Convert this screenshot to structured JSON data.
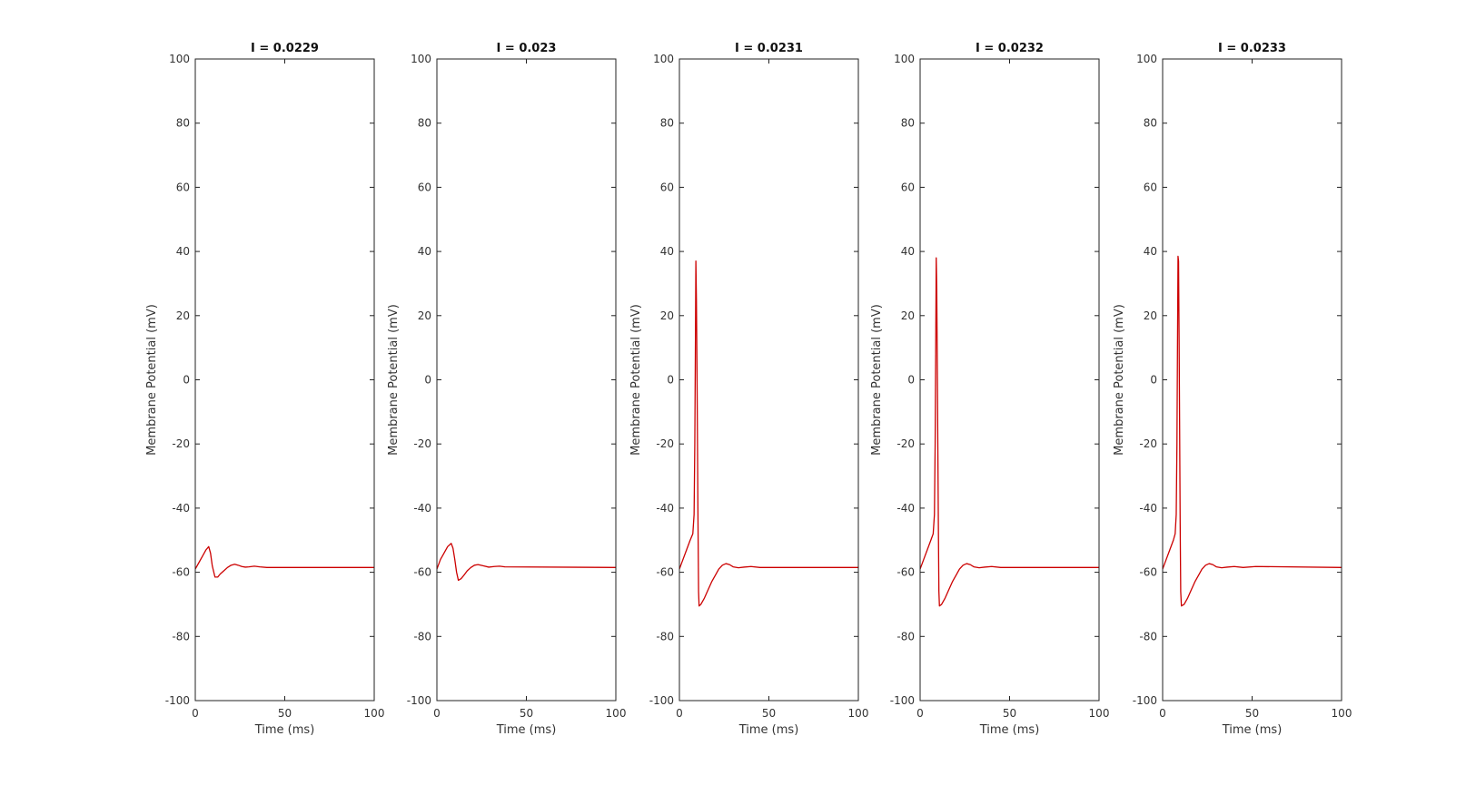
{
  "chart_data": [
    {
      "type": "line",
      "title": "I = 0.0229",
      "xlabel": "Time (ms)",
      "ylabel": "Membrane Potential (mV)",
      "xlim": [
        0,
        100
      ],
      "ylim": [
        -100,
        100
      ],
      "xticks": [
        "0",
        "50",
        "100"
      ],
      "yticks": [
        "100",
        "80",
        "60",
        "40",
        "20",
        "0",
        "-20",
        "-40",
        "-60",
        "-80",
        "-100"
      ],
      "grid": false,
      "series": [
        {
          "color": "#cc0000",
          "x": [
            0,
            2,
            4,
            6,
            7.5,
            8.5,
            9.5,
            11,
            12.5,
            14,
            16,
            18,
            20,
            22,
            24,
            26,
            28,
            30,
            33,
            36,
            40,
            100
          ],
          "y": [
            -59,
            -57,
            -55,
            -53,
            -52,
            -54,
            -58,
            -61.5,
            -61.5,
            -60.5,
            -59.5,
            -58.5,
            -57.8,
            -57.5,
            -57.8,
            -58.2,
            -58.4,
            -58.3,
            -58.1,
            -58.3,
            -58.5,
            -58.5
          ]
        }
      ]
    },
    {
      "type": "line",
      "title": "I = 0.023",
      "xlabel": "Time (ms)",
      "ylabel": "Membrane Potential (mV)",
      "xlim": [
        0,
        100
      ],
      "ylim": [
        -100,
        100
      ],
      "xticks": [
        "0",
        "50",
        "100"
      ],
      "yticks": [
        "100",
        "80",
        "60",
        "40",
        "20",
        "0",
        "-20",
        "-40",
        "-60",
        "-80",
        "-100"
      ],
      "grid": false,
      "series": [
        {
          "color": "#cc0000",
          "x": [
            0,
            2,
            4,
            6,
            8,
            9,
            10,
            11,
            12,
            13.5,
            15,
            17,
            19,
            21,
            23,
            26,
            29,
            32,
            35,
            38,
            100
          ],
          "y": [
            -59,
            -56,
            -54,
            -52,
            -51,
            -52.5,
            -56,
            -60,
            -62.5,
            -62,
            -61,
            -59.5,
            -58.5,
            -57.8,
            -57.6,
            -58,
            -58.4,
            -58.2,
            -58.1,
            -58.3,
            -58.5
          ]
        }
      ]
    },
    {
      "type": "line",
      "title": "I = 0.0231",
      "xlabel": "Time (ms)",
      "ylabel": "Membrane Potential (mV)",
      "xlim": [
        0,
        100
      ],
      "ylim": [
        -100,
        100
      ],
      "xticks": [
        "0",
        "50",
        "100"
      ],
      "yticks": [
        "100",
        "80",
        "60",
        "40",
        "20",
        "0",
        "-20",
        "-40",
        "-60",
        "-80",
        "-100"
      ],
      "grid": false,
      "series": [
        {
          "color": "#cc0000",
          "x": [
            0,
            2,
            4,
            6,
            7.5,
            8.2,
            8.6,
            8.9,
            9.2,
            9.5,
            9.8,
            10.1,
            10.4,
            10.7,
            11,
            12,
            14,
            16,
            18,
            20,
            22,
            24,
            26,
            28,
            30,
            33,
            36,
            40,
            45,
            100
          ],
          "y": [
            -59,
            -56,
            -53,
            -50,
            -48,
            -42,
            -20,
            7,
            37,
            25,
            5,
            -20,
            -45,
            -66,
            -70.5,
            -70,
            -68,
            -65.5,
            -63,
            -61,
            -59,
            -57.8,
            -57.3,
            -57.6,
            -58.3,
            -58.6,
            -58.4,
            -58.2,
            -58.5,
            -58.5
          ]
        }
      ]
    },
    {
      "type": "line",
      "title": "I = 0.0232",
      "xlabel": "Time (ms)",
      "ylabel": "Membrane Potential (mV)",
      "xlim": [
        0,
        100
      ],
      "ylim": [
        -100,
        100
      ],
      "xticks": [
        "0",
        "50",
        "100"
      ],
      "yticks": [
        "100",
        "80",
        "60",
        "40",
        "20",
        "0",
        "-20",
        "-40",
        "-60",
        "-80",
        "-100"
      ],
      "grid": false,
      "series": [
        {
          "color": "#cc0000",
          "x": [
            0,
            2,
            4,
            6,
            7.3,
            8,
            8.4,
            8.7,
            9,
            9.3,
            9.6,
            9.9,
            10.2,
            10.5,
            10.8,
            12,
            14,
            16,
            18,
            20,
            22,
            24,
            26,
            28,
            30,
            33,
            36,
            40,
            45,
            100
          ],
          "y": [
            -59,
            -56,
            -53,
            -50,
            -48,
            -42,
            -20,
            8,
            38,
            28,
            5,
            -20,
            -45,
            -66,
            -70.5,
            -70,
            -68,
            -65.5,
            -63,
            -61,
            -59,
            -57.8,
            -57.3,
            -57.6,
            -58.3,
            -58.6,
            -58.4,
            -58.2,
            -58.5,
            -58.5
          ]
        }
      ]
    },
    {
      "type": "line",
      "title": "I = 0.0233",
      "xlabel": "Time (ms)",
      "ylabel": "Membrane Potential (mV)",
      "xlim": [
        0,
        100
      ],
      "ylim": [
        -100,
        100
      ],
      "xticks": [
        "0",
        "50",
        "100"
      ],
      "yticks": [
        "100",
        "80",
        "60",
        "40",
        "20",
        "0",
        "-20",
        "-40",
        "-60",
        "-80",
        "-100"
      ],
      "grid": false,
      "series": [
        {
          "color": "#cc0000",
          "x": [
            0,
            2,
            4,
            6,
            7,
            7.6,
            8,
            8.3,
            8.6,
            8.9,
            9.2,
            9.5,
            9.8,
            10.1,
            10.5,
            12,
            14,
            16,
            18,
            20,
            22,
            24,
            26,
            28,
            30,
            33,
            36,
            40,
            45,
            52,
            100
          ],
          "y": [
            -59,
            -56,
            -53,
            -50,
            -48,
            -42,
            -20,
            10,
            38.5,
            37,
            13,
            -15,
            -45,
            -66,
            -70.5,
            -70,
            -68,
            -65.5,
            -63,
            -61,
            -59,
            -57.8,
            -57.3,
            -57.6,
            -58.3,
            -58.6,
            -58.4,
            -58.2,
            -58.5,
            -58.2,
            -58.5
          ]
        }
      ]
    }
  ]
}
